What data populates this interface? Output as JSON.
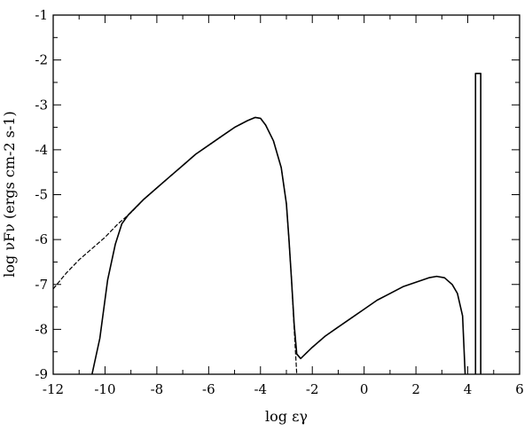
{
  "chart_data": {
    "type": "line",
    "xlabel": "log εγ",
    "ylabel": "log νFν (ergs cm-2 s-1)",
    "xlim": [
      -12,
      6
    ],
    "ylim": [
      -9,
      -1
    ],
    "grid": false,
    "legend": "none",
    "x_ticks": [
      -12,
      -10,
      -8,
      -6,
      -4,
      -2,
      0,
      2,
      4,
      6
    ],
    "y_ticks": [
      -9,
      -8,
      -7,
      -6,
      -5,
      -4,
      -3,
      -2,
      -1
    ],
    "series": [
      {
        "style": "dashed",
        "points": [
          [
            -12,
            -7.1
          ],
          [
            -11.5,
            -6.75
          ],
          [
            -11,
            -6.45
          ],
          [
            -10.5,
            -6.2
          ],
          [
            -10,
            -5.95
          ],
          [
            -9.5,
            -5.65
          ],
          [
            -9,
            -5.4
          ],
          [
            -8.5,
            -5.1
          ],
          [
            -8,
            -4.85
          ],
          [
            -7.5,
            -4.6
          ],
          [
            -7,
            -4.35
          ],
          [
            -6.5,
            -4.1
          ],
          [
            -6,
            -3.9
          ],
          [
            -5.5,
            -3.7
          ],
          [
            -5,
            -3.5
          ],
          [
            -4.5,
            -3.35
          ],
          [
            -4.2,
            -3.28
          ],
          [
            -4.0,
            -3.3
          ],
          [
            -3.8,
            -3.45
          ],
          [
            -3.5,
            -3.8
          ],
          [
            -3.2,
            -4.4
          ],
          [
            -3.0,
            -5.2
          ],
          [
            -2.9,
            -6.0
          ],
          [
            -2.8,
            -6.9
          ],
          [
            -2.7,
            -8.0
          ],
          [
            -2.6,
            -9.0
          ]
        ]
      },
      {
        "style": "solid",
        "points": [
          [
            -10.5,
            -9.0
          ],
          [
            -10.2,
            -8.2
          ],
          [
            -9.9,
            -6.9
          ],
          [
            -9.6,
            -6.1
          ],
          [
            -9.35,
            -5.65
          ],
          [
            -9.1,
            -5.45
          ],
          [
            -8.5,
            -5.1
          ],
          [
            -8,
            -4.85
          ],
          [
            -7.5,
            -4.6
          ],
          [
            -7,
            -4.35
          ],
          [
            -6.5,
            -4.1
          ],
          [
            -6,
            -3.9
          ],
          [
            -5.5,
            -3.7
          ],
          [
            -5,
            -3.5
          ],
          [
            -4.5,
            -3.35
          ],
          [
            -4.2,
            -3.28
          ],
          [
            -4.0,
            -3.3
          ],
          [
            -3.8,
            -3.45
          ],
          [
            -3.5,
            -3.8
          ],
          [
            -3.2,
            -4.4
          ],
          [
            -3.0,
            -5.2
          ],
          [
            -2.9,
            -6.0
          ],
          [
            -2.8,
            -6.9
          ],
          [
            -2.7,
            -7.9
          ],
          [
            -2.6,
            -8.55
          ],
          [
            -2.45,
            -8.65
          ],
          [
            -2,
            -8.4
          ],
          [
            -1.5,
            -8.15
          ],
          [
            -1,
            -7.95
          ],
          [
            -0.5,
            -7.75
          ],
          [
            0,
            -7.55
          ],
          [
            0.5,
            -7.35
          ],
          [
            1,
            -7.2
          ],
          [
            1.5,
            -7.05
          ],
          [
            2,
            -6.95
          ],
          [
            2.5,
            -6.85
          ],
          [
            2.8,
            -6.82
          ],
          [
            3.1,
            -6.85
          ],
          [
            3.4,
            -7.0
          ],
          [
            3.6,
            -7.2
          ],
          [
            3.8,
            -7.7
          ],
          [
            3.9,
            -9.0
          ]
        ]
      },
      {
        "style": "solid",
        "shape": "box",
        "points": [
          [
            4.3,
            -9.0
          ],
          [
            4.3,
            -2.3
          ],
          [
            4.5,
            -2.3
          ],
          [
            4.5,
            -9.0
          ]
        ]
      }
    ]
  }
}
